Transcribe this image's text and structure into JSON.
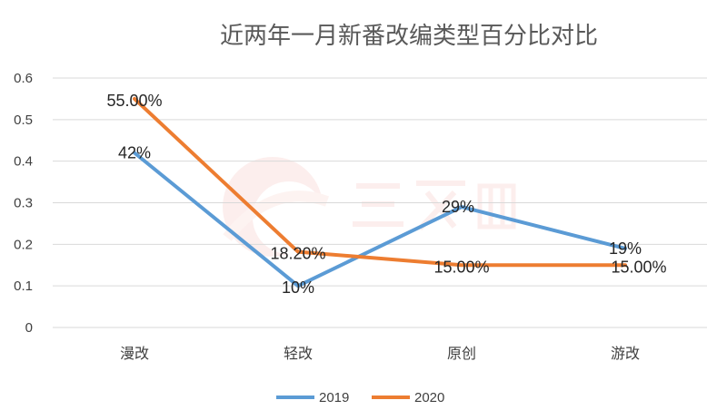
{
  "chart_data": {
    "type": "line",
    "title": "近两年一月新番改编类型百分比对比",
    "categories": [
      "漫改",
      "轻改",
      "原创",
      "游改"
    ],
    "ylim": [
      0,
      0.6
    ],
    "yticks": [
      "0",
      "0.1",
      "0.2",
      "0.3",
      "0.4",
      "0.5",
      "0.6"
    ],
    "grid": true,
    "legend_position": "bottom",
    "series": [
      {
        "name": "2019",
        "color": "#5b9bd5",
        "values": [
          0.42,
          0.1,
          0.29,
          0.19
        ],
        "labels": [
          "42%",
          "10%",
          "29%",
          "19%"
        ]
      },
      {
        "name": "2020",
        "color": "#ed7d31",
        "values": [
          0.55,
          0.182,
          0.15,
          0.15
        ],
        "labels": [
          "55.00%",
          "18.20%",
          "15.00%",
          "15.00%"
        ]
      }
    ]
  }
}
